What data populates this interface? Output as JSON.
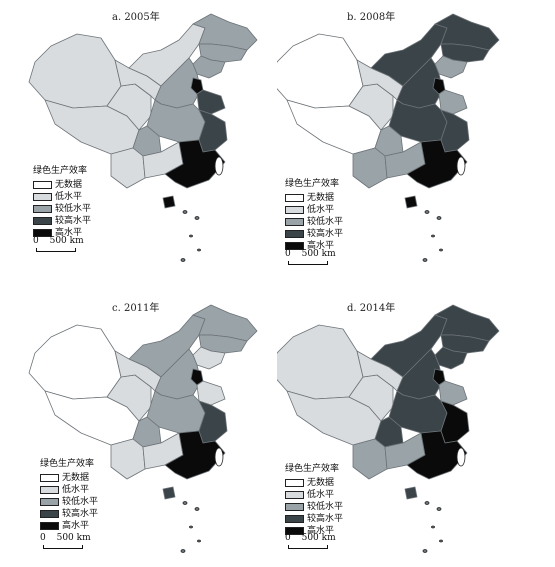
{
  "colors": {
    "none": "#ffffff",
    "low": "#d9dcde",
    "mid_low": "#9aa3a8",
    "mid_high": "#3b4449",
    "high": "#0a0a0a",
    "border": "#6c7378"
  },
  "legend": {
    "title": "绿色生产效率",
    "items": [
      {
        "key": "none",
        "label": "无数据"
      },
      {
        "key": "low",
        "label": "低水平"
      },
      {
        "key": "mid_low",
        "label": "较低水平"
      },
      {
        "key": "mid_high",
        "label": "较高水平"
      },
      {
        "key": "high",
        "label": "高水平"
      }
    ]
  },
  "scale_bar": {
    "zero": "0",
    "distance": "500 km"
  },
  "panels": [
    {
      "id": "a",
      "title": "a. 2005年",
      "regions": {
        "xinjiang": "low",
        "tibet": "low",
        "qinghai": "low",
        "gansu": "low",
        "inner_mongolia": "low",
        "heilongjiang": "mid_low",
        "jilin": "mid_low",
        "liaoning": "mid_low",
        "north": "mid_low",
        "beijing": "high",
        "shandong": "mid_high",
        "central": "mid_low",
        "sichuan": "mid_low",
        "yunnan": "low",
        "southwest": "low",
        "east": "mid_high",
        "southeast": "high",
        "hainan": "high"
      }
    },
    {
      "id": "b",
      "title": "b. 2008年",
      "regions": {
        "xinjiang": "none",
        "tibet": "none",
        "qinghai": "low",
        "gansu": "low",
        "inner_mongolia": "mid_high",
        "heilongjiang": "mid_high",
        "jilin": "mid_high",
        "liaoning": "mid_low",
        "north": "mid_high",
        "beijing": "high",
        "shandong": "mid_low",
        "central": "mid_high",
        "sichuan": "mid_low",
        "yunnan": "mid_low",
        "southwest": "mid_low",
        "east": "mid_high",
        "southeast": "high",
        "hainan": "high"
      }
    },
    {
      "id": "c",
      "title": "c. 2011年",
      "regions": {
        "xinjiang": "none",
        "tibet": "none",
        "qinghai": "low",
        "gansu": "low",
        "inner_mongolia": "mid_low",
        "heilongjiang": "mid_low",
        "jilin": "mid_low",
        "liaoning": "low",
        "north": "mid_low",
        "beijing": "high",
        "shandong": "low",
        "central": "mid_low",
        "sichuan": "mid_low",
        "yunnan": "low",
        "southwest": "low",
        "east": "mid_high",
        "southeast": "high",
        "hainan": "mid_high"
      }
    },
    {
      "id": "d",
      "title": "d. 2014年",
      "regions": {
        "xinjiang": "low",
        "tibet": "low",
        "qinghai": "low",
        "gansu": "low",
        "inner_mongolia": "mid_high",
        "heilongjiang": "mid_high",
        "jilin": "mid_high",
        "liaoning": "mid_high",
        "north": "mid_high",
        "beijing": "high",
        "shandong": "mid_low",
        "central": "mid_high",
        "sichuan": "mid_high",
        "yunnan": "mid_low",
        "southwest": "mid_low",
        "east": "high",
        "southeast": "high",
        "hainan": "mid_high"
      }
    }
  ]
}
